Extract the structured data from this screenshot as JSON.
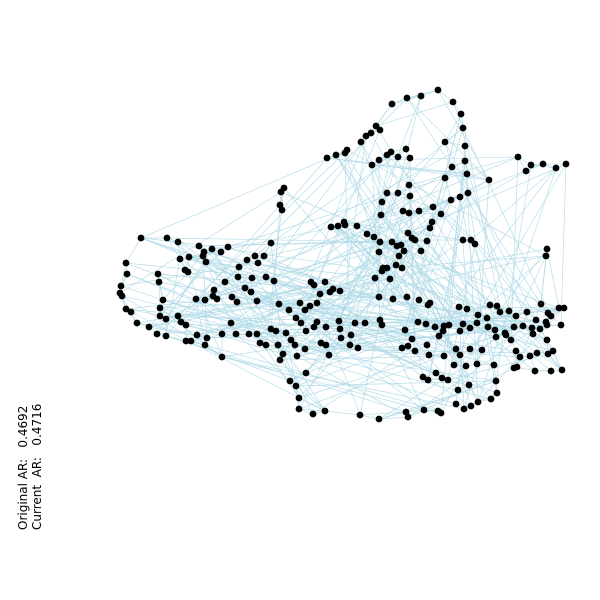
{
  "annotations": {
    "original_ar": "Original AR:   0.4692",
    "current_ar": "Current  AR:   0.4716"
  },
  "style": {
    "node_color": "#000000",
    "edge_color": "#add8e6",
    "background": "#ffffff"
  }
}
